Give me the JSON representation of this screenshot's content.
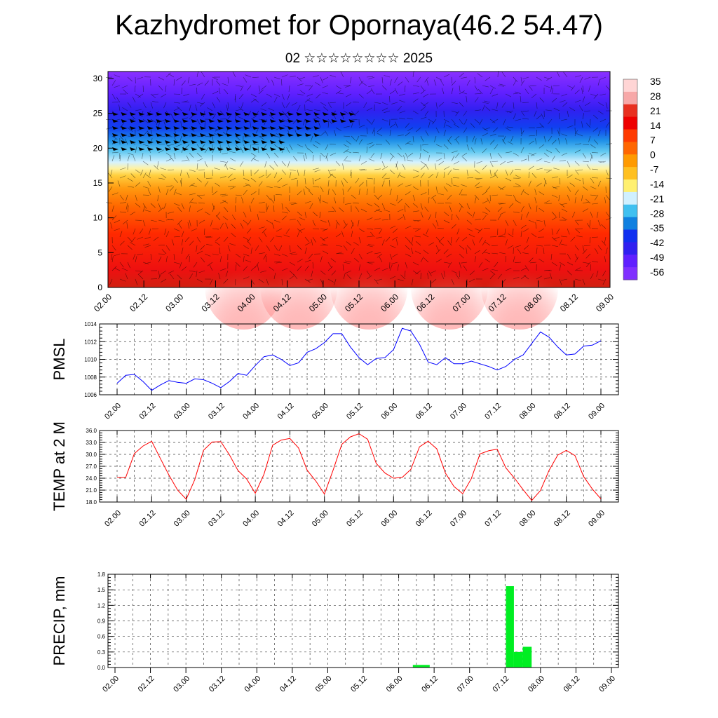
{
  "title": "Kazhydromet for Opornaya(46.2 54.47)",
  "subtitle": "02 ☆☆☆☆☆☆☆☆ 2025",
  "time_labels": [
    "02.00",
    "02.12",
    "03.00",
    "03.12",
    "04.00",
    "04.12",
    "05.00",
    "05.12",
    "06.00",
    "06.12",
    "07.00",
    "07.12",
    "08.00",
    "08.12",
    "09.00"
  ],
  "chart_data": [
    {
      "type": "heatmap",
      "name": "cross-section",
      "y_ticks": [
        "0",
        "5",
        "10",
        "15",
        "20",
        "25",
        "30"
      ],
      "ylim": [
        0,
        31
      ],
      "colorbar": {
        "labels": [
          "35",
          "28",
          "21",
          "14",
          "7",
          "0",
          "-7",
          "-14",
          "-21",
          "-28",
          "-35",
          "-42",
          "-49",
          "-56"
        ],
        "colors": [
          "#ffd5d5",
          "#f7a8a8",
          "#e83020",
          "#ee0000",
          "#ff3a00",
          "#ff6600",
          "#ff9a00",
          "#ffc020",
          "#fff070",
          "#d0f0ff",
          "#40c0f0",
          "#1080e0",
          "#1030f0",
          "#3020f0",
          "#6020ff",
          "#8030ff"
        ]
      }
    },
    {
      "type": "line",
      "ylabel": "PMSL",
      "y_ticks": [
        "1006",
        "1008",
        "1010",
        "1012",
        "1014"
      ],
      "ylim": [
        1006,
        1014
      ],
      "color": "#0000ff",
      "values": [
        1007.3,
        1008.2,
        1008.3,
        1007.5,
        1006.5,
        1007.1,
        1007.6,
        1007.4,
        1007.3,
        1007.8,
        1007.7,
        1007.3,
        1006.8,
        1007.5,
        1008.4,
        1008.2,
        1009.3,
        1010.3,
        1010.5,
        1010.0,
        1009.3,
        1009.6,
        1010.8,
        1011.2,
        1011.9,
        1012.9,
        1012.9,
        1011.4,
        1010.2,
        1009.4,
        1010.1,
        1010.2,
        1011.1,
        1013.5,
        1013.2,
        1011.7,
        1009.7,
        1009.4,
        1010.2,
        1009.5,
        1009.5,
        1009.8,
        1009.5,
        1009.2,
        1008.8,
        1009.2,
        1010.0,
        1010.5,
        1011.8,
        1013.1,
        1012.5,
        1011.4,
        1010.5,
        1010.6,
        1011.5,
        1011.6,
        1012.1
      ]
    },
    {
      "type": "line",
      "ylabel": "TEMP at 2 M",
      "y_ticks": [
        "18.0",
        "21.0",
        "24.0",
        "27.0",
        "30.0",
        "33.0",
        "36.0"
      ],
      "ylim": [
        18,
        36
      ],
      "color": "#ff0000",
      "values": [
        24.2,
        24.2,
        30.2,
        32.1,
        33.3,
        29.0,
        24.8,
        21.0,
        18.7,
        23.7,
        31.0,
        33.1,
        33.2,
        29.9,
        25.9,
        23.8,
        20.2,
        25.0,
        32.3,
        33.6,
        34.0,
        31.6,
        26.0,
        23.3,
        20.0,
        26.0,
        32.5,
        34.4,
        35.2,
        33.8,
        27.7,
        25.3,
        24.0,
        24.2,
        26.2,
        31.9,
        33.3,
        31.4,
        25.3,
        21.9,
        20.1,
        23.9,
        30.1,
        30.9,
        31.3,
        26.6,
        24.0,
        21.1,
        18.4,
        20.9,
        26.0,
        29.8,
        31.0,
        29.7,
        24.4,
        21.3,
        18.8
      ]
    },
    {
      "type": "bar",
      "ylabel": "PRECIP, mm",
      "y_ticks": [
        "0.0",
        "0.3",
        "0.6",
        "0.9",
        "1.2",
        "1.5",
        "1.8"
      ],
      "ylim": [
        0,
        1.8
      ],
      "color": "#00ee22",
      "bars": [
        {
          "start": 33.6,
          "end": 35.5,
          "value": 0.05
        },
        {
          "start": 44.1,
          "end": 45.0,
          "value": 1.57
        },
        {
          "start": 45.0,
          "end": 46.0,
          "value": 0.3
        },
        {
          "start": 46.0,
          "end": 47.0,
          "value": 0.4
        }
      ]
    }
  ]
}
